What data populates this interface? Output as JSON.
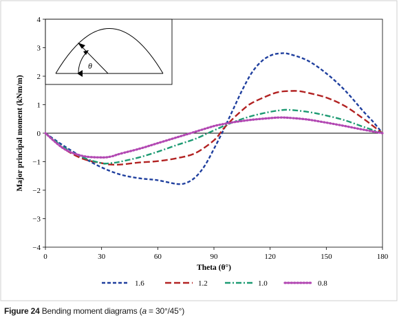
{
  "chart_data": {
    "type": "line",
    "xlabel": "Theta (θ°)",
    "ylabel": "Major principal moment (kNm/m)",
    "xlim": [
      0,
      180
    ],
    "ylim": [
      -4,
      4
    ],
    "x_ticks": [
      0,
      30,
      60,
      90,
      120,
      150,
      180
    ],
    "y_ticks": [
      4,
      3,
      2,
      1,
      0,
      -1,
      -2,
      -3,
      -4
    ],
    "y_tick_labels": [
      "4",
      "3",
      "2",
      "1",
      "0",
      "−1",
      "−2",
      "−3",
      "−4"
    ],
    "grid": false,
    "legend_position": "bottom",
    "series": [
      {
        "name": "1.6",
        "color": "#1f3f9e",
        "dash": "5,3",
        "points": [
          [
            0,
            0
          ],
          [
            10,
            -0.45
          ],
          [
            20,
            -0.85
          ],
          [
            30,
            -1.2
          ],
          [
            40,
            -1.45
          ],
          [
            50,
            -1.58
          ],
          [
            60,
            -1.65
          ],
          [
            70,
            -1.78
          ],
          [
            75,
            -1.75
          ],
          [
            80,
            -1.55
          ],
          [
            85,
            -1.15
          ],
          [
            90,
            -0.55
          ],
          [
            95,
            0.1
          ],
          [
            100,
            0.8
          ],
          [
            105,
            1.5
          ],
          [
            110,
            2.1
          ],
          [
            115,
            2.5
          ],
          [
            120,
            2.72
          ],
          [
            125,
            2.8
          ],
          [
            130,
            2.78
          ],
          [
            140,
            2.55
          ],
          [
            150,
            2.1
          ],
          [
            160,
            1.5
          ],
          [
            170,
            0.75
          ],
          [
            175,
            0.4
          ],
          [
            180,
            0
          ]
        ]
      },
      {
        "name": "1.2",
        "color": "#b22222",
        "dash": "9,4",
        "points": [
          [
            0,
            0
          ],
          [
            10,
            -0.55
          ],
          [
            20,
            -0.9
          ],
          [
            30,
            -1.05
          ],
          [
            35,
            -1.1
          ],
          [
            40,
            -1.1
          ],
          [
            50,
            -1.03
          ],
          [
            60,
            -0.98
          ],
          [
            70,
            -0.88
          ],
          [
            80,
            -0.7
          ],
          [
            90,
            -0.25
          ],
          [
            95,
            0.15
          ],
          [
            100,
            0.5
          ],
          [
            105,
            0.8
          ],
          [
            110,
            1.05
          ],
          [
            120,
            1.35
          ],
          [
            125,
            1.45
          ],
          [
            130,
            1.48
          ],
          [
            135,
            1.48
          ],
          [
            140,
            1.42
          ],
          [
            150,
            1.25
          ],
          [
            160,
            0.95
          ],
          [
            170,
            0.5
          ],
          [
            175,
            0.25
          ],
          [
            180,
            0
          ]
        ]
      },
      {
        "name": "1.0",
        "color": "#1c9a72",
        "dash": "8,3,2,3",
        "points": [
          [
            0,
            0
          ],
          [
            10,
            -0.5
          ],
          [
            20,
            -0.85
          ],
          [
            30,
            -1.05
          ],
          [
            35,
            -1.05
          ],
          [
            40,
            -1.0
          ],
          [
            50,
            -0.85
          ],
          [
            60,
            -0.65
          ],
          [
            70,
            -0.42
          ],
          [
            80,
            -0.2
          ],
          [
            90,
            0.1
          ],
          [
            100,
            0.38
          ],
          [
            110,
            0.6
          ],
          [
            120,
            0.75
          ],
          [
            125,
            0.8
          ],
          [
            130,
            0.82
          ],
          [
            140,
            0.75
          ],
          [
            150,
            0.62
          ],
          [
            160,
            0.45
          ],
          [
            170,
            0.22
          ],
          [
            180,
            0
          ]
        ]
      },
      {
        "name": "0.8",
        "color": "#b247b2",
        "dash": "1.5,3",
        "points": [
          [
            0,
            0
          ],
          [
            10,
            -0.55
          ],
          [
            20,
            -0.8
          ],
          [
            30,
            -0.85
          ],
          [
            35,
            -0.82
          ],
          [
            40,
            -0.72
          ],
          [
            50,
            -0.55
          ],
          [
            60,
            -0.35
          ],
          [
            70,
            -0.15
          ],
          [
            80,
            0.05
          ],
          [
            90,
            0.25
          ],
          [
            95,
            0.32
          ],
          [
            100,
            0.38
          ],
          [
            110,
            0.47
          ],
          [
            120,
            0.53
          ],
          [
            125,
            0.55
          ],
          [
            130,
            0.54
          ],
          [
            140,
            0.48
          ],
          [
            150,
            0.37
          ],
          [
            160,
            0.25
          ],
          [
            170,
            0.12
          ],
          [
            180,
            0
          ]
        ]
      }
    ],
    "inset": {
      "angle_label": "θ"
    }
  },
  "caption": {
    "label": "Figure 24",
    "text": " Bending moment diagrams (",
    "equation": "a",
    "equation_rest": " = 30°/45°",
    "close": ")"
  }
}
